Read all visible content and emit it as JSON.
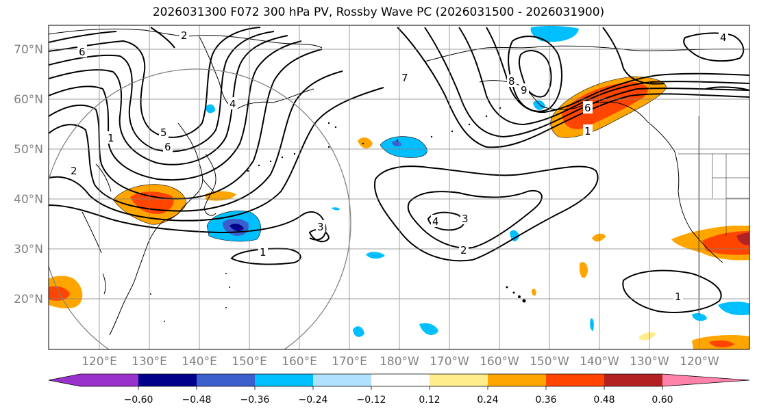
{
  "title": "2026031300 F072 300 hPa PV, Rossby Wave PC (2026031500 - 2026031900)",
  "lat_labels": [
    "70°N",
    "60°N",
    "50°N",
    "40°N",
    "30°N",
    "20°N"
  ],
  "lon_labels": [
    "120°E",
    "130°E",
    "140°E",
    "150°E",
    "160°E",
    "170°E",
    "180°W",
    "170°W",
    "160°W",
    "150°W",
    "140°W",
    "130°W",
    "120°W"
  ],
  "colorbar": {
    "colors": [
      "#9932CC",
      "#00008B",
      "#3A5FCD",
      "#00BFFF",
      "#B0E2FF",
      "#FFFFFF",
      "#FFEC8B",
      "#FFA500",
      "#FF4500",
      "#B22222",
      "#FF82AB"
    ],
    "tick_labels": [
      "−0.60",
      "−0.48",
      "−0.36",
      "−0.24",
      "−0.12",
      "0.12",
      "0.24",
      "0.36",
      "0.48",
      "0.60"
    ]
  },
  "contour_labels": [
    "6",
    "1",
    "2",
    "6",
    "5",
    "2",
    "4",
    "3",
    "1",
    "4",
    "3",
    "2",
    "8",
    "9",
    "6",
    "1",
    "1",
    "7",
    "4"
  ]
}
